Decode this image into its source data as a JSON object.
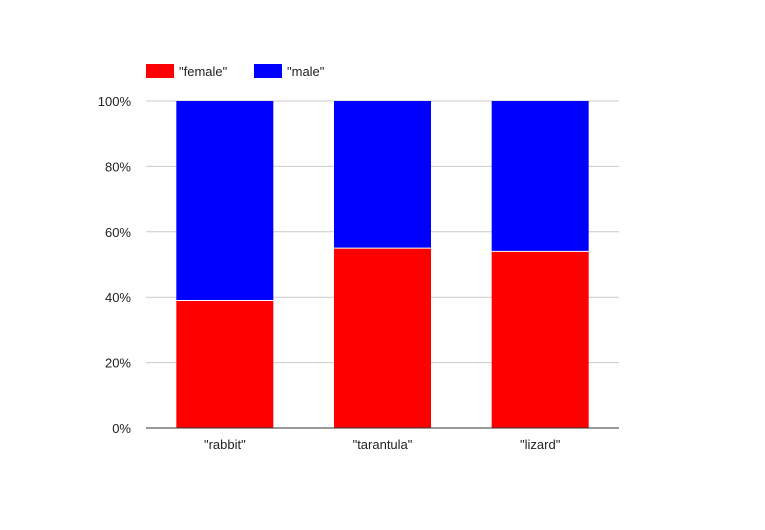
{
  "chart_data": {
    "type": "bar",
    "stacked": "percent",
    "categories": [
      "\"rabbit\"",
      "\"tarantula\"",
      "\"lizard\""
    ],
    "series": [
      {
        "name": "\"female\"",
        "color": "#ff0000",
        "values": [
          39,
          55,
          54
        ]
      },
      {
        "name": "\"male\"",
        "color": "#0000ff",
        "values": [
          61,
          45,
          46
        ]
      }
    ],
    "y_ticks": [
      "0%",
      "20%",
      "40%",
      "60%",
      "80%",
      "100%"
    ],
    "ylim": [
      0,
      100
    ],
    "grid": true,
    "legend_position": "top-left"
  }
}
